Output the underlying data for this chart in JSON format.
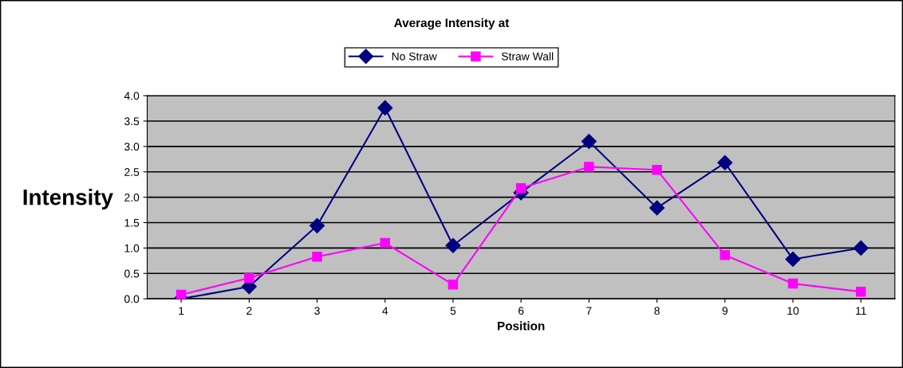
{
  "chart_data": {
    "type": "line",
    "title": "Average Intensity at",
    "xlabel": "Position",
    "ylabel": "Intensity",
    "categories": [
      "1",
      "2",
      "3",
      "4",
      "5",
      "6",
      "7",
      "8",
      "9",
      "10",
      "11"
    ],
    "series": [
      {
        "name": "No Straw",
        "color": "#000080",
        "marker": "diamond",
        "values": [
          0.0,
          0.24,
          1.44,
          3.76,
          1.05,
          2.09,
          3.1,
          1.79,
          2.68,
          0.78,
          1.0
        ]
      },
      {
        "name": "Straw Wall",
        "color": "#ff00ff",
        "marker": "square",
        "values": [
          0.08,
          0.41,
          0.83,
          1.1,
          0.28,
          2.18,
          2.6,
          2.54,
          0.86,
          0.3,
          0.14
        ]
      }
    ],
    "ylim": [
      0,
      4
    ],
    "yticks": [
      {
        "value": 0,
        "label": "0.0"
      },
      {
        "value": 0.5,
        "label": "0.5"
      },
      {
        "value": 1,
        "label": "1.0"
      },
      {
        "value": 1.5,
        "label": "1.5"
      },
      {
        "value": 2,
        "label": "2.0"
      },
      {
        "value": 2.5,
        "label": "2.5"
      },
      {
        "value": 3,
        "label": "3.0"
      },
      {
        "value": 3.5,
        "label": "3.5"
      },
      {
        "value": 4,
        "label": "4.0"
      }
    ],
    "grid": "y",
    "legend": "top",
    "line_style": "solid"
  }
}
